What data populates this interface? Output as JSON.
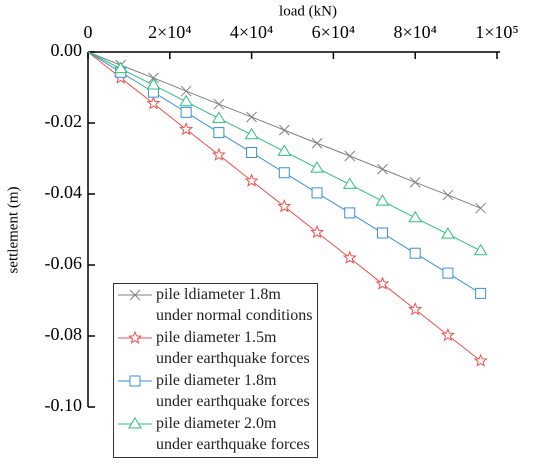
{
  "chart_data": {
    "type": "line",
    "x_label": "load (kN)",
    "y_label": "settlement (m)",
    "x": [
      0,
      8000,
      16000,
      24000,
      32000,
      40000,
      48000,
      56000,
      64000,
      72000,
      80000,
      88000,
      96000
    ],
    "series": [
      {
        "name": "pile ldiameter 1.8m\nunder normal conditions",
        "color": "#808080",
        "marker": "x",
        "values": [
          0,
          -0.0037,
          -0.0073,
          -0.011,
          -0.0147,
          -0.0183,
          -0.022,
          -0.0257,
          -0.0293,
          -0.033,
          -0.0367,
          -0.0403,
          -0.044
        ]
      },
      {
        "name": "pile diameter 1.5m\nunder earthquake forces",
        "color": "#f05050",
        "marker": "star",
        "values": [
          0,
          -0.0073,
          -0.0145,
          -0.0218,
          -0.029,
          -0.0363,
          -0.0435,
          -0.0508,
          -0.058,
          -0.0653,
          -0.0725,
          -0.0798,
          -0.087
        ]
      },
      {
        "name": "pile diameter 1.8m\nunder earthquake forces",
        "color": "#3a8fe0",
        "marker": "square",
        "values": [
          0,
          -0.0057,
          -0.0113,
          -0.017,
          -0.0227,
          -0.0283,
          -0.034,
          -0.0397,
          -0.0453,
          -0.051,
          -0.0567,
          -0.0623,
          -0.068
        ]
      },
      {
        "name": "pile diameter 2.0m\nunder earthquake forces",
        "color": "#2ec07a",
        "marker": "triangle",
        "values": [
          0,
          -0.0047,
          -0.0093,
          -0.014,
          -0.0187,
          -0.0233,
          -0.028,
          -0.0327,
          -0.0373,
          -0.042,
          -0.0467,
          -0.0513,
          -0.056
        ]
      }
    ],
    "xlim": [
      0,
      100000
    ],
    "xticks": [
      0,
      {
        "value": 20000,
        "label": "2×10⁴"
      },
      {
        "value": 40000,
        "label": "4×10⁴"
      },
      {
        "value": 60000,
        "label": "6×10⁴"
      },
      {
        "value": 80000,
        "label": "8×10⁴"
      },
      {
        "value": 100000,
        "label": "1×10⁵"
      }
    ],
    "ylim": [
      0,
      -0.1
    ],
    "yticks": [
      {
        "value": 0,
        "label": "0.00"
      },
      -0.02,
      -0.04,
      -0.06,
      -0.08,
      {
        "value": -0.1,
        "label": "-0.10"
      }
    ],
    "legend": "lower left"
  }
}
